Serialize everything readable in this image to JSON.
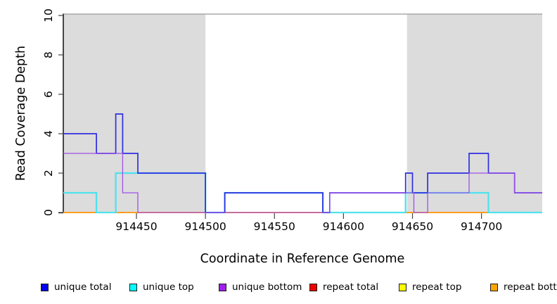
{
  "chart_data": {
    "type": "line",
    "style": "step",
    "title": "",
    "xlabel": "Coordinate in Reference Genome",
    "ylabel": "Read Coverage Depth",
    "xlim": [
      914397,
      914744
    ],
    "ylim": [
      0,
      10
    ],
    "x_ticks": [
      914450,
      914500,
      914550,
      914600,
      914650,
      914700
    ],
    "y_ticks": [
      0,
      2,
      4,
      6,
      8,
      10
    ],
    "grid": false,
    "legend_position": "bottom",
    "shade_color": "#DCDCDC",
    "shaded_regions": [
      [
        914397,
        914500
      ],
      [
        914646,
        914744
      ]
    ],
    "series": [
      {
        "key": "unique-total",
        "label": "unique total",
        "legend_color": "#0000EE",
        "line_color": "#2E2EE0",
        "line_width": 1.7,
        "z": 5,
        "steps": [
          [
            914397,
            4
          ],
          [
            914421,
            3
          ],
          [
            914435,
            5
          ],
          [
            914440,
            3
          ],
          [
            914451,
            2
          ],
          [
            914500,
            0
          ],
          [
            914514,
            1
          ],
          [
            914585,
            0
          ],
          [
            914590,
            1
          ],
          [
            914645,
            2
          ],
          [
            914650,
            1
          ],
          [
            914661,
            2
          ],
          [
            914691,
            3
          ],
          [
            914705,
            2
          ],
          [
            914724,
            1
          ]
        ]
      },
      {
        "key": "unique-top",
        "label": "unique top",
        "legend_color": "#00FFFF",
        "line_color": "#4EE2EE",
        "line_width": 2.3,
        "z": 4,
        "steps": [
          [
            914397,
            1
          ],
          [
            914421,
            0
          ],
          [
            914435,
            2
          ],
          [
            914500,
            0
          ],
          [
            914514,
            1
          ],
          [
            914585,
            0
          ],
          [
            914645,
            1
          ],
          [
            914705,
            0
          ]
        ]
      },
      {
        "key": "unique-bottom",
        "label": "unique bottom",
        "legend_color": "#A020F0",
        "line_color": "#A050E8",
        "line_width": 1.3,
        "z": 6,
        "steps": [
          [
            914397,
            3
          ],
          [
            914440,
            1
          ],
          [
            914451,
            0
          ],
          [
            914590,
            1
          ],
          [
            914651,
            0
          ],
          [
            914661,
            1
          ],
          [
            914691,
            2
          ],
          [
            914724,
            1
          ]
        ]
      },
      {
        "key": "repeat-total",
        "label": "repeat total",
        "legend_color": "#EE0000",
        "line_color": "#DB5C72",
        "line_width": 1.5,
        "z": 2,
        "steps": [
          [
            914397,
            0
          ]
        ]
      },
      {
        "key": "repeat-top",
        "label": "repeat top",
        "legend_color": "#FFFF00",
        "line_color": "#F2E34E",
        "line_width": 1.4,
        "z": 1,
        "steps": [
          [
            914397,
            0
          ]
        ]
      },
      {
        "key": "repeat-bottom",
        "label": "repeat bottom",
        "legend_color": "#FFA500",
        "line_color": "#FF9E1F",
        "line_width": 1.9,
        "z": 3,
        "steps": [
          [
            914397,
            0
          ]
        ]
      }
    ]
  }
}
